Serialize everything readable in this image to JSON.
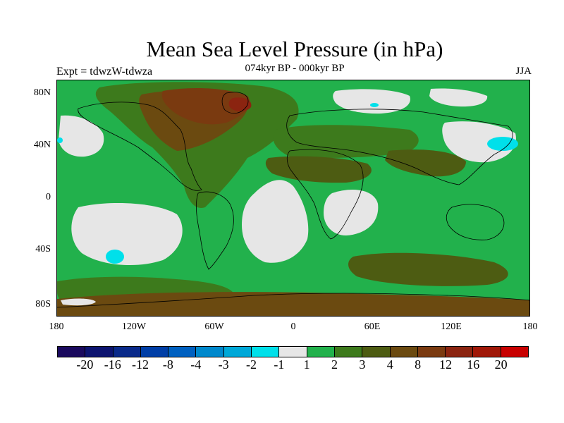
{
  "title": "Mean Sea Level Pressure (in hPa)",
  "subtitle": "074kyr BP - 000kyr BP",
  "experiment_label": "Expt = tdwzW-tdwza",
  "season": "JJA",
  "colors": {
    "ocean_base": "#22b14c",
    "land_mid": "#3d7a1c",
    "brown": "#7a4a14",
    "dark_brown": "#6b3410",
    "red_brown": "#8b3010",
    "light_gray": "#e6e6e6",
    "cyan": "#00e0ea",
    "coastline": "#000000"
  },
  "y_axis_ticks": [
    "80N",
    "40N",
    "0",
    "40S",
    "80S"
  ],
  "x_axis_ticks": [
    "180",
    "120W",
    "60W",
    "0",
    "60E",
    "120E",
    "180"
  ],
  "colorbar": {
    "colors": [
      "#1a0a5e",
      "#0d1470",
      "#0a2a8a",
      "#003ea6",
      "#0060c0",
      "#0088cc",
      "#00a8d8",
      "#00e0ea",
      "#e6e6e6",
      "#22b14c",
      "#3d7a1c",
      "#4d5c12",
      "#6b4a10",
      "#7a3a10",
      "#8b2410",
      "#a01808",
      "#c80000"
    ],
    "labels": [
      "-20",
      "-16",
      "-12",
      "-8",
      "-4",
      "-3",
      "-2",
      "-1",
      "1",
      "2",
      "3",
      "4",
      "8",
      "12",
      "16",
      "20"
    ]
  }
}
